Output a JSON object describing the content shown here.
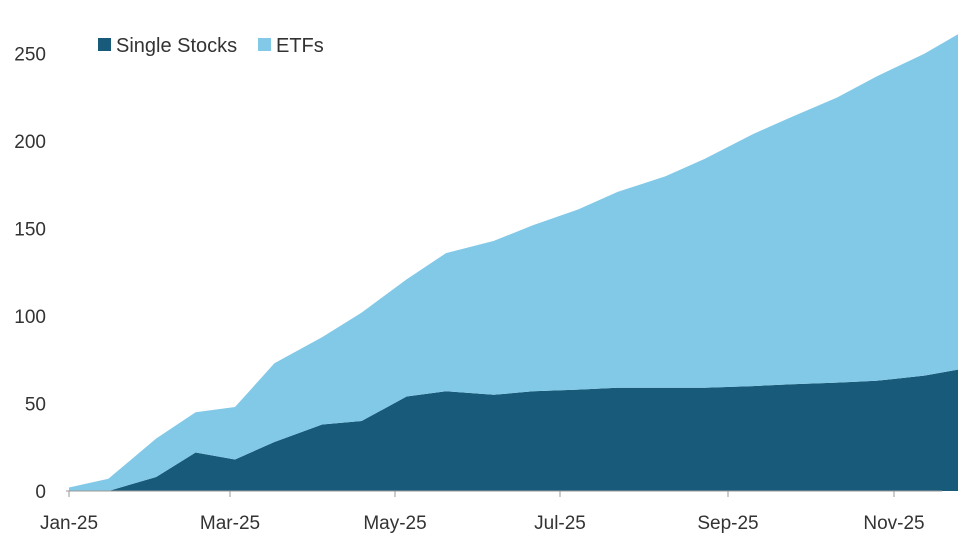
{
  "chart_data": {
    "type": "area",
    "stacked": true,
    "title": "",
    "xlabel": "",
    "ylabel": "",
    "ylim": [
      0,
      275
    ],
    "yticks": [
      0,
      50,
      100,
      150,
      200,
      250
    ],
    "xticks": [
      "Jan-25",
      "Mar-25",
      "May-25",
      "Jul-25",
      "Sep-25",
      "Nov-25"
    ],
    "grid": false,
    "legend_position": "top-left",
    "x": [
      "2025-01-01",
      "2025-01-15",
      "2025-02-01",
      "2025-02-15",
      "2025-03-01",
      "2025-03-15",
      "2025-04-01",
      "2025-04-15",
      "2025-05-01",
      "2025-05-15",
      "2025-06-01",
      "2025-06-15",
      "2025-07-01",
      "2025-07-15",
      "2025-08-01",
      "2025-08-15",
      "2025-09-01",
      "2025-09-15",
      "2025-10-01",
      "2025-10-15",
      "2025-11-01",
      "2025-11-15",
      "2025-11-28"
    ],
    "series": [
      {
        "name": "Single Stocks",
        "color": "#175a7a",
        "values": [
          0,
          0,
          8,
          22,
          18,
          28,
          38,
          40,
          54,
          57,
          55,
          57,
          58,
          59,
          59,
          59,
          60,
          61,
          62,
          63,
          66,
          70,
          72
        ]
      },
      {
        "name": "ETFs",
        "color": "#82c9e8",
        "values": [
          2,
          7,
          22,
          23,
          30,
          45,
          50,
          62,
          67,
          79,
          88,
          95,
          103,
          112,
          121,
          131,
          144,
          153,
          163,
          174,
          184,
          193,
          203
        ]
      }
    ]
  }
}
